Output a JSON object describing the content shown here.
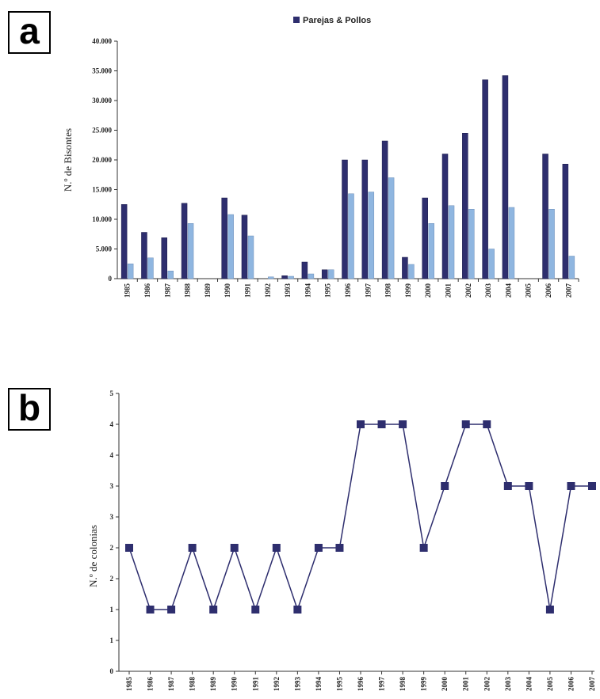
{
  "panels": {
    "a": "a",
    "b": "b"
  },
  "chart_data": [
    {
      "type": "bar",
      "legend": "Parejas & Pollos",
      "ylabel": "N.º de Bisontes",
      "ylim": [
        0,
        40000
      ],
      "yticks": [
        "0",
        "5.000",
        "10.000",
        "15.000",
        "20.000",
        "25.000",
        "30.000",
        "35.000",
        "40.000"
      ],
      "categories": [
        "1985",
        "1986",
        "1987",
        "1988",
        "1989",
        "1990",
        "1991",
        "1992",
        "1993",
        "1994",
        "1995",
        "1996",
        "1997",
        "1998",
        "1999",
        "2000",
        "2001",
        "2002",
        "2003",
        "2004",
        "2005",
        "2006",
        "2007"
      ],
      "series": [
        {
          "name": "Parejas",
          "color": "#2e2e6e",
          "values": [
            12500,
            7800,
            6900,
            12700,
            0,
            13600,
            10700,
            0,
            500,
            2800,
            1500,
            20000,
            20000,
            23200,
            3600,
            13600,
            21000,
            24500,
            33500,
            34200,
            0,
            21000,
            19300
          ]
        },
        {
          "name": "Pollos",
          "color": "#8fb6e0",
          "values": [
            2500,
            3500,
            1300,
            9300,
            0,
            10800,
            7200,
            300,
            400,
            800,
            1500,
            14300,
            14600,
            17000,
            2400,
            9300,
            12300,
            11700,
            5000,
            12000,
            0,
            11700,
            3800
          ]
        }
      ]
    },
    {
      "type": "line",
      "ylabel": "N.º de colonias",
      "ylim": [
        0,
        9
      ],
      "yticks": [
        "0",
        "1",
        "1",
        "2",
        "2",
        "3",
        "3",
        "4",
        "4",
        "5"
      ],
      "x": [
        "1985",
        "1986",
        "1987",
        "1988",
        "1989",
        "1990",
        "1991",
        "1992",
        "1993",
        "1994",
        "1995",
        "1996",
        "1997",
        "1998",
        "1999",
        "2000",
        "2001",
        "2002",
        "2003",
        "2004",
        "2005",
        "2006",
        "2007"
      ],
      "values": [
        4,
        2,
        2,
        4,
        2,
        4,
        2,
        4,
        2,
        4,
        4,
        8,
        8,
        8,
        4,
        6,
        8,
        8,
        6,
        6,
        2,
        6,
        6
      ],
      "color": "#2e2e6e"
    }
  ]
}
